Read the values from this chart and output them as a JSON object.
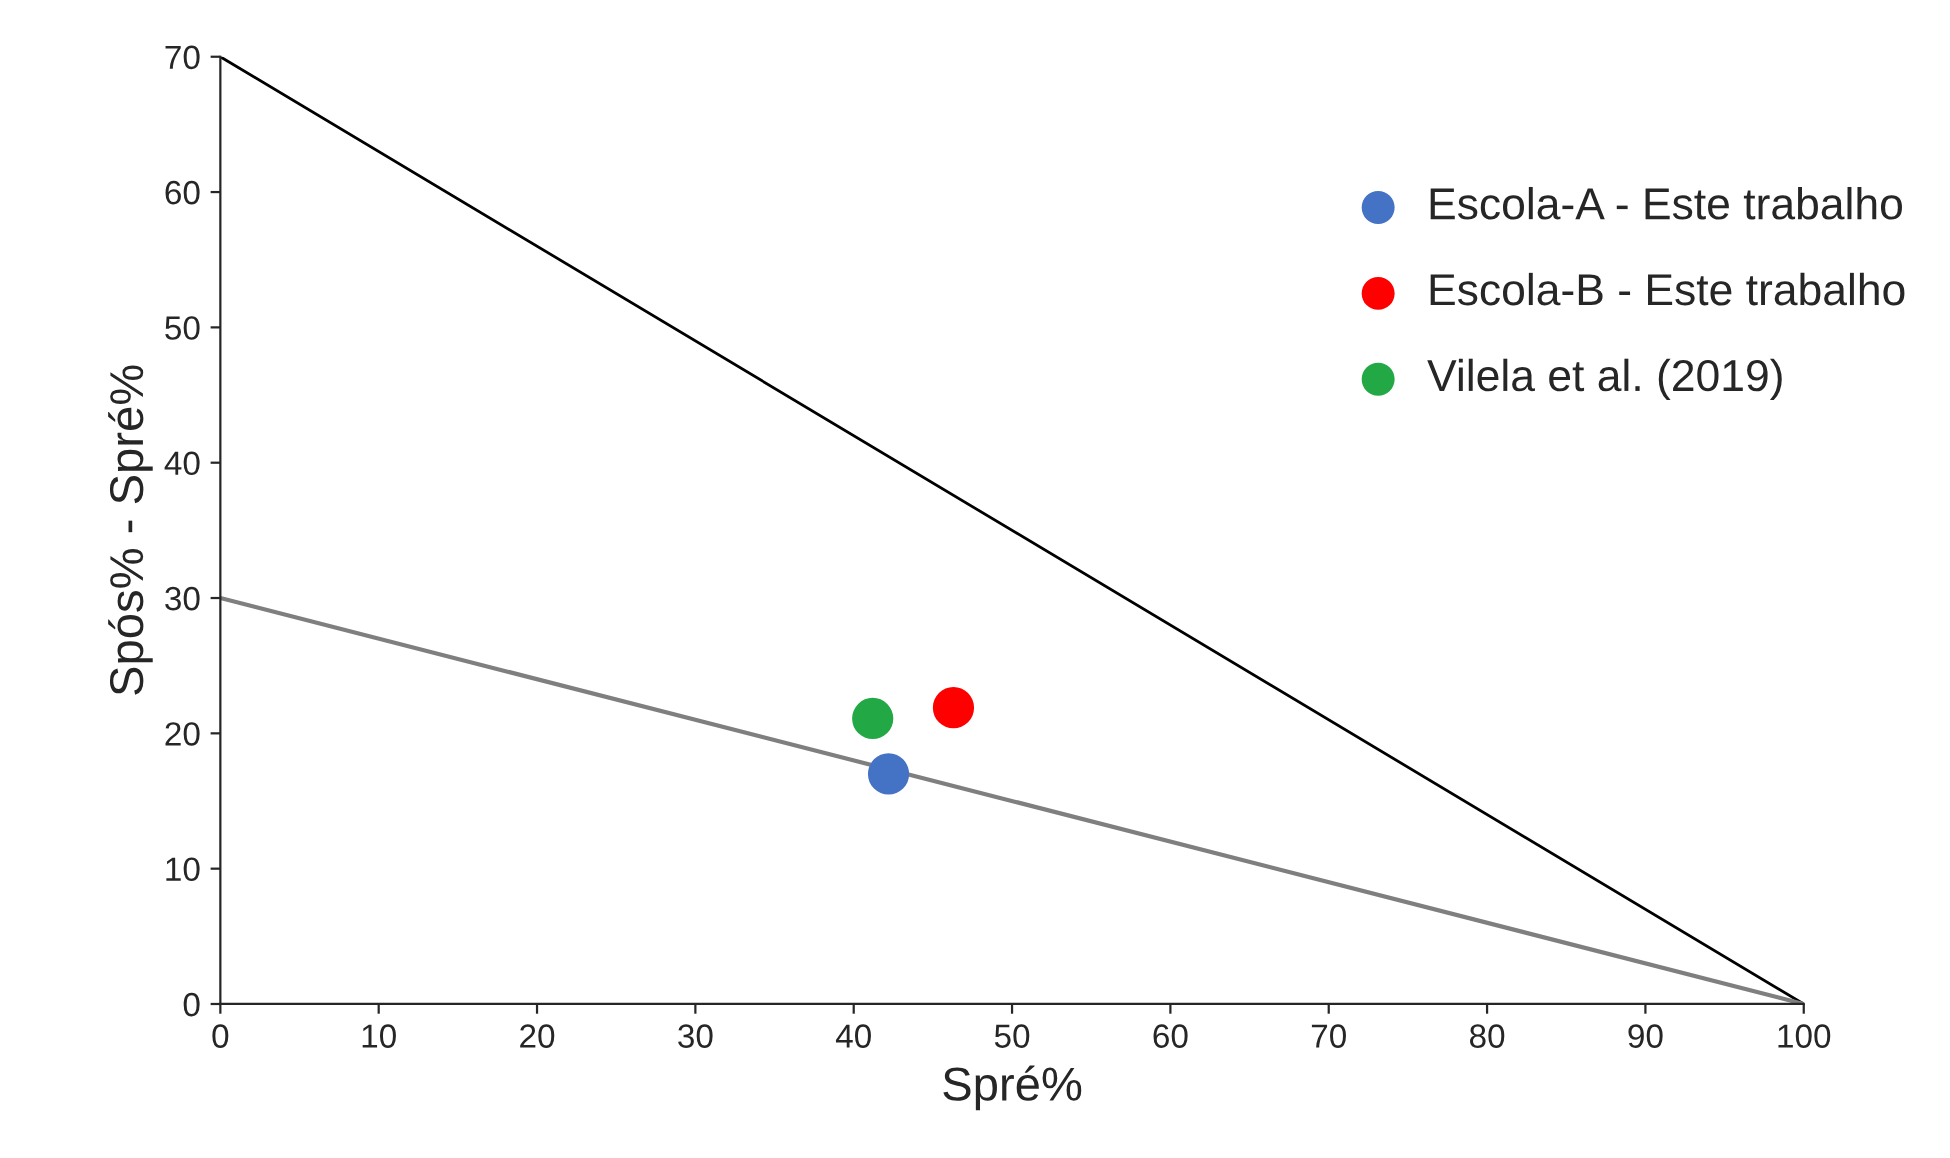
{
  "chart_data": {
    "type": "scatter",
    "xlabel": "Spré%",
    "ylabel": "Spós% - Spré%",
    "series": [
      {
        "type": "line",
        "marker": "none",
        "color": "#000000",
        "x": [
          0,
          100
        ],
        "values": [
          70,
          0
        ]
      },
      {
        "type": "line",
        "marker": "none",
        "color": "#7f7f7f",
        "x": [
          0,
          100
        ],
        "values": [
          30,
          0
        ]
      },
      {
        "name": "Escola-A - Este trabalho",
        "color": "#4472c4",
        "x": [
          42.2
        ],
        "values": [
          17.0
        ]
      },
      {
        "name": "Escola-B - Este trabalho",
        "color": "#ff0000",
        "x": [
          46.3
        ],
        "values": [
          21.9
        ]
      },
      {
        "name": "Vilela et al. (2019)",
        "color": "#22a845",
        "x": [
          41.2
        ],
        "values": [
          21.1
        ]
      }
    ],
    "xlim": [
      0,
      100
    ],
    "ylim": [
      0,
      70
    ],
    "xticks": [
      0,
      10,
      20,
      30,
      40,
      50,
      60,
      70,
      80,
      90,
      100
    ],
    "yticks": [
      0,
      10,
      20,
      30,
      40,
      50,
      60,
      70
    ],
    "grid": false,
    "legend": "right",
    "marker": "circle"
  }
}
